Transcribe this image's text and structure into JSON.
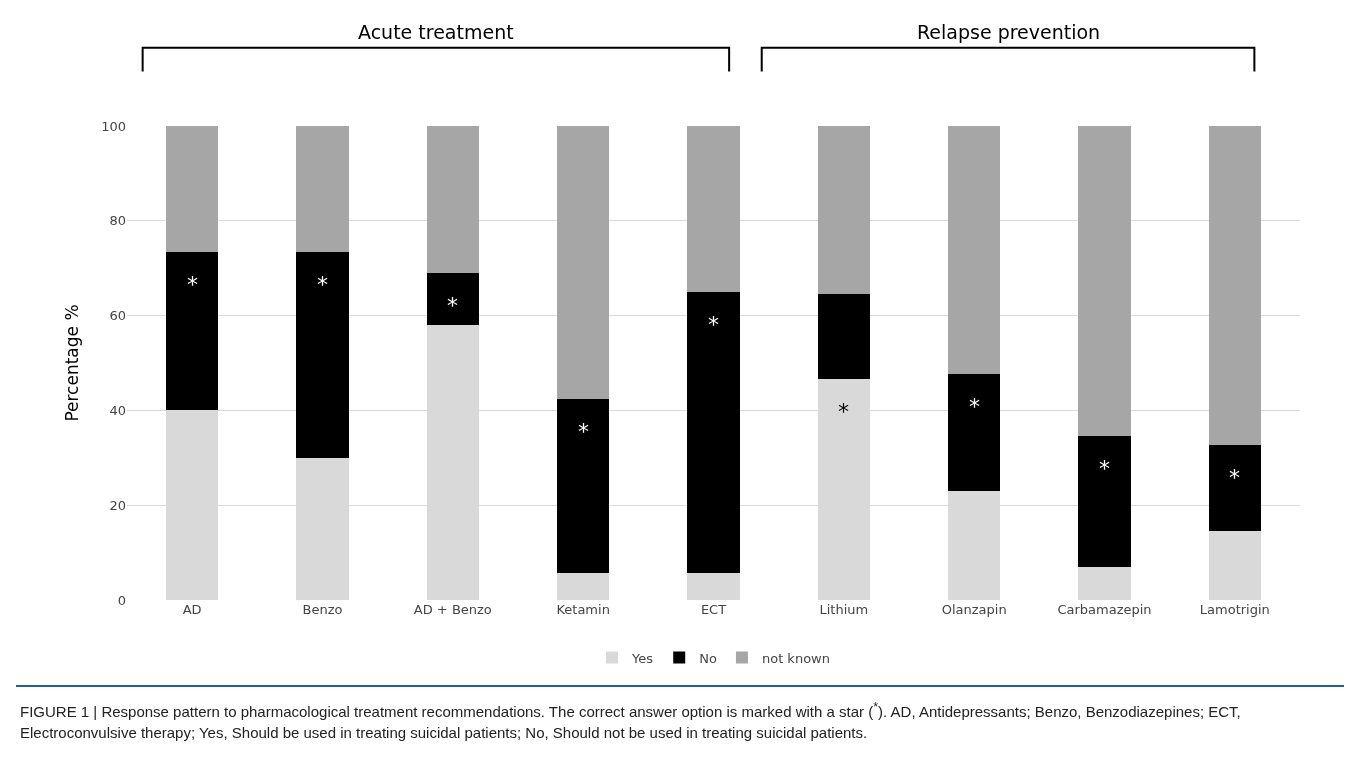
{
  "chart_data": {
    "type": "bar",
    "stacked": true,
    "ylabel": "Percentage %",
    "categories": [
      "AD",
      "Benzo",
      "AD + Benzo",
      "Ketamin",
      "ECT",
      "Lithium",
      "Olanzapin",
      "Carbamazepin",
      "Lamotrigin"
    ],
    "series": [
      {
        "name": "Yes",
        "color": "#d9d9d9",
        "values": [
          40,
          30,
          58,
          5.7,
          5.7,
          46.6,
          23,
          7,
          14.5
        ]
      },
      {
        "name": "No",
        "color": "#000000",
        "values": [
          33.5,
          43.5,
          11,
          36.8,
          59.3,
          17.9,
          24.7,
          27.5,
          18.3
        ]
      },
      {
        "name": "not known",
        "color": "#a6a6a6",
        "values": [
          26.5,
          26.5,
          31,
          57.5,
          35,
          35.5,
          52.3,
          65.5,
          67.2
        ]
      }
    ],
    "ylim": [
      0,
      100
    ],
    "yticks": [
      0,
      20,
      40,
      60,
      80,
      100
    ],
    "grid": "y",
    "legend": "bottom",
    "annotations": [
      {
        "text": "*",
        "x": "AD",
        "y": 73.5
      },
      {
        "text": "*",
        "x": "Benzo",
        "y": 73.5
      },
      {
        "text": "*",
        "x": "AD + Benzo",
        "y": 69
      },
      {
        "text": "*",
        "x": "Ketamin",
        "y": 42.5
      },
      {
        "text": "*",
        "x": "ECT",
        "y": 65
      },
      {
        "text": "*",
        "x": "Lithium",
        "y": 46.6
      },
      {
        "text": "*",
        "x": "Olanzapin",
        "y": 47.7
      },
      {
        "text": "*",
        "x": "Carbamazepin",
        "y": 34.5
      },
      {
        "text": "*",
        "x": "Lamotrigin",
        "y": 32.8
      },
      "Acute treatment",
      "Relapse prevention",
      "FIGURE 1 | Response pattern to pharmacological treatment recommendations. The correct answer option is marked with a star ($^{*}$). AD, Antidepressants; Benzo, Benzodiazepines; ECT, Electroconvulsive therapy; Yes, Should be used in treating suicidal patients; No, Should not be used in treating suicidal patients."
    ]
  }
}
